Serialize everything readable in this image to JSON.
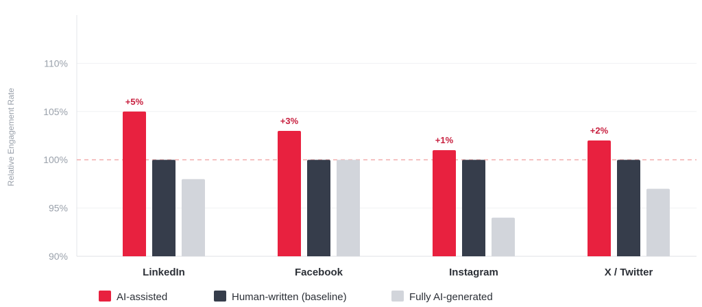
{
  "chart_data": {
    "type": "bar",
    "ylabel": "Relative Engagement Rate",
    "xlabel": "",
    "title": "",
    "categories": [
      "LinkedIn",
      "Facebook",
      "Instagram",
      "X / Twitter"
    ],
    "series": [
      {
        "name": "AI-assisted",
        "values": [
          105,
          103,
          101,
          102
        ],
        "color": "#e8213f",
        "labels": [
          "+5%",
          "+3%",
          "+1%",
          "+2%"
        ]
      },
      {
        "name": "Human-written (baseline)",
        "values": [
          100,
          100,
          100,
          100
        ],
        "color": "#363d4b"
      },
      {
        "name": "Fully AI-generated",
        "values": [
          98,
          100,
          94,
          97
        ],
        "color": "#d2d5db"
      }
    ],
    "ylim": [
      90,
      115
    ],
    "yticks": [
      90,
      95,
      100,
      105,
      110
    ],
    "ytick_labels": [
      "90%",
      "95%",
      "100%",
      "105%",
      "110%"
    ],
    "reference_line": {
      "value": 100,
      "style": "dashed",
      "color": "#f1a6a6"
    },
    "grid": true,
    "legend_position": "bottom-left"
  }
}
